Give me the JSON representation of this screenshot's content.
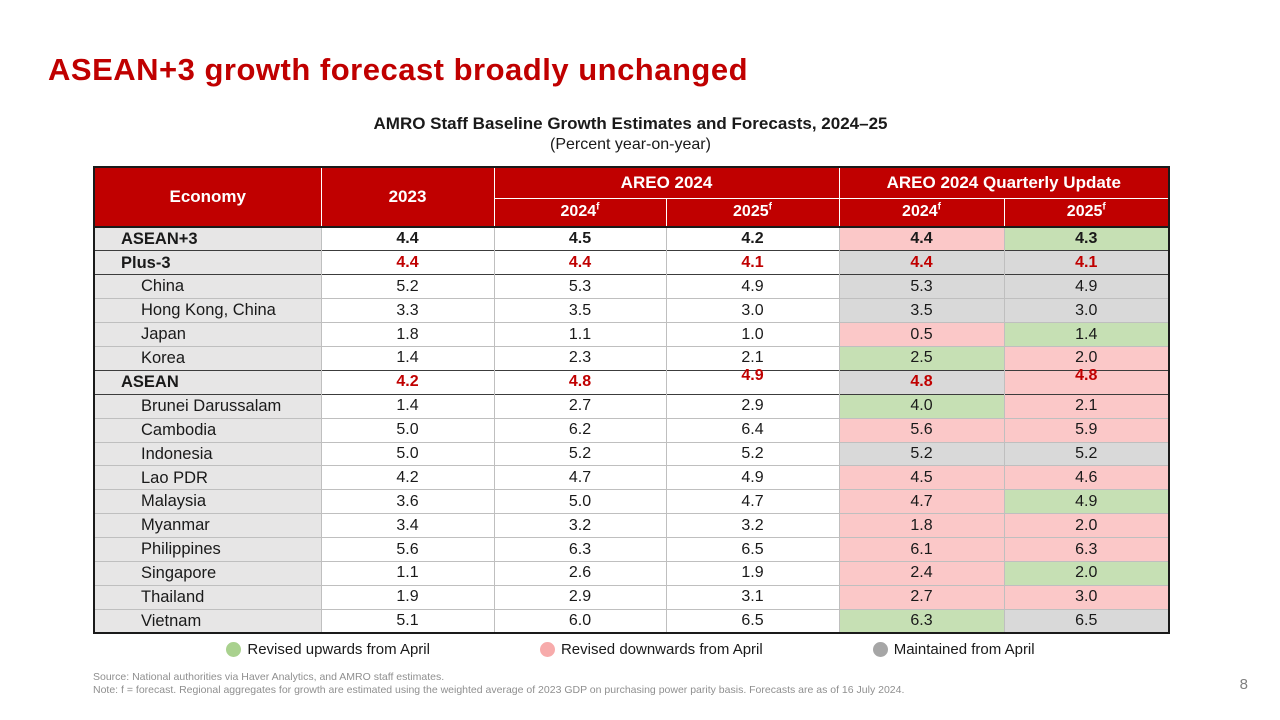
{
  "title": "ASEAN+3 growth forecast broadly unchanged",
  "colors": {
    "accent_red": "#C00000",
    "revised_up_cell": "#C6E0B4",
    "revised_down_cell": "#FBC8C8",
    "maintained_cell": "#D9D9D9",
    "economy_column": "#E7E6E6"
  },
  "table": {
    "title": "AMRO Staff Baseline Growth Estimates and Forecasts, 2024–25",
    "subtitle": "(Percent year-on-year)",
    "headers": {
      "economy": "Economy",
      "y2023": "2023",
      "areo": "AREO 2024",
      "quarterly": "AREO 2024 Quarterly Update",
      "sub": [
        {
          "year": "2024",
          "sup": "f"
        },
        {
          "year": "2025",
          "sup": "f"
        },
        {
          "year": "2024",
          "sup": "f"
        },
        {
          "year": "2025",
          "sup": "f"
        }
      ]
    },
    "rows": [
      {
        "economy": "ASEAN+3",
        "type": "group",
        "text": "black",
        "values": [
          "4.4",
          "4.5",
          "4.2",
          "4.4",
          "4.3"
        ],
        "status": [
          "none",
          "none",
          "none",
          "down",
          "up"
        ]
      },
      {
        "economy": "Plus-3",
        "type": "group",
        "text": "red",
        "values": [
          "4.4",
          "4.4",
          "4.1",
          "4.4",
          "4.1"
        ],
        "status": [
          "none",
          "none",
          "none",
          "maintained",
          "maintained"
        ]
      },
      {
        "economy": "China",
        "type": "country",
        "text": "black",
        "values": [
          "5.2",
          "5.3",
          "4.9",
          "5.3",
          "4.9"
        ],
        "status": [
          "none",
          "none",
          "none",
          "maintained",
          "maintained"
        ]
      },
      {
        "economy": "Hong Kong, China",
        "type": "country",
        "text": "black",
        "values": [
          "3.3",
          "3.5",
          "3.0",
          "3.5",
          "3.0"
        ],
        "status": [
          "none",
          "none",
          "none",
          "maintained",
          "maintained"
        ]
      },
      {
        "economy": "Japan",
        "type": "country",
        "text": "black",
        "values": [
          "1.8",
          "1.1",
          "1.0",
          "0.5",
          "1.4"
        ],
        "status": [
          "none",
          "none",
          "none",
          "down",
          "up"
        ]
      },
      {
        "economy": "Korea",
        "type": "country",
        "text": "black",
        "values": [
          "1.4",
          "2.3",
          "2.1",
          "2.5",
          "2.0"
        ],
        "status": [
          "none",
          "none",
          "none",
          "up",
          "down"
        ]
      },
      {
        "economy": "ASEAN",
        "type": "group",
        "text": "red",
        "values": [
          "4.2",
          "4.8",
          "4.9",
          "4.8",
          "4.8"
        ],
        "status": [
          "none",
          "none",
          "none",
          "maintained",
          "down"
        ],
        "raised": [
          false,
          false,
          true,
          false,
          true
        ]
      },
      {
        "economy": "Brunei Darussalam",
        "type": "country",
        "text": "black",
        "values": [
          "1.4",
          "2.7",
          "2.9",
          "4.0",
          "2.1"
        ],
        "status": [
          "none",
          "none",
          "none",
          "up",
          "down"
        ]
      },
      {
        "economy": "Cambodia",
        "type": "country",
        "text": "black",
        "values": [
          "5.0",
          "6.2",
          "6.4",
          "5.6",
          "5.9"
        ],
        "status": [
          "none",
          "none",
          "none",
          "down",
          "down"
        ]
      },
      {
        "economy": "Indonesia",
        "type": "country",
        "text": "black",
        "values": [
          "5.0",
          "5.2",
          "5.2",
          "5.2",
          "5.2"
        ],
        "status": [
          "none",
          "none",
          "none",
          "maintained",
          "maintained"
        ]
      },
      {
        "economy": "Lao PDR",
        "type": "country",
        "text": "black",
        "values": [
          "4.2",
          "4.7",
          "4.9",
          "4.5",
          "4.6"
        ],
        "status": [
          "none",
          "none",
          "none",
          "down",
          "down"
        ]
      },
      {
        "economy": "Malaysia",
        "type": "country",
        "text": "black",
        "values": [
          "3.6",
          "5.0",
          "4.7",
          "4.7",
          "4.9"
        ],
        "status": [
          "none",
          "none",
          "none",
          "down",
          "up"
        ]
      },
      {
        "economy": "Myanmar",
        "type": "country",
        "text": "black",
        "values": [
          "3.4",
          "3.2",
          "3.2",
          "1.8",
          "2.0"
        ],
        "status": [
          "none",
          "none",
          "none",
          "down",
          "down"
        ]
      },
      {
        "economy": "Philippines",
        "type": "country",
        "text": "black",
        "values": [
          "5.6",
          "6.3",
          "6.5",
          "6.1",
          "6.3"
        ],
        "status": [
          "none",
          "none",
          "none",
          "down",
          "down"
        ]
      },
      {
        "economy": "Singapore",
        "type": "country",
        "text": "black",
        "values": [
          "1.1",
          "2.6",
          "1.9",
          "2.4",
          "2.0"
        ],
        "status": [
          "none",
          "none",
          "none",
          "down",
          "up"
        ]
      },
      {
        "economy": "Thailand",
        "type": "country",
        "text": "black",
        "values": [
          "1.9",
          "2.9",
          "3.1",
          "2.7",
          "3.0"
        ],
        "status": [
          "none",
          "none",
          "none",
          "down",
          "down"
        ]
      },
      {
        "economy": "Vietnam",
        "type": "country",
        "text": "black",
        "values": [
          "5.1",
          "6.0",
          "6.5",
          "6.3",
          "6.5"
        ],
        "status": [
          "none",
          "none",
          "none",
          "up",
          "maintained"
        ]
      }
    ]
  },
  "legend": [
    {
      "label": "Revised upwards from April",
      "color": "#A9D18E"
    },
    {
      "label": "Revised downwards from April",
      "color": "#F7ABAB"
    },
    {
      "label": "Maintained  from April",
      "color": "#A6A6A6"
    }
  ],
  "footer": {
    "source": "Source: National authorities via Haver Analytics, and AMRO  staff estimates.",
    "note": "Note:  f = forecast. Regional aggregates for growth are estimated using the weighted average of 2023 GDP  on purchasing power parity basis. Forecasts are as of 16 July 2024."
  },
  "page": {
    "number": "8"
  }
}
